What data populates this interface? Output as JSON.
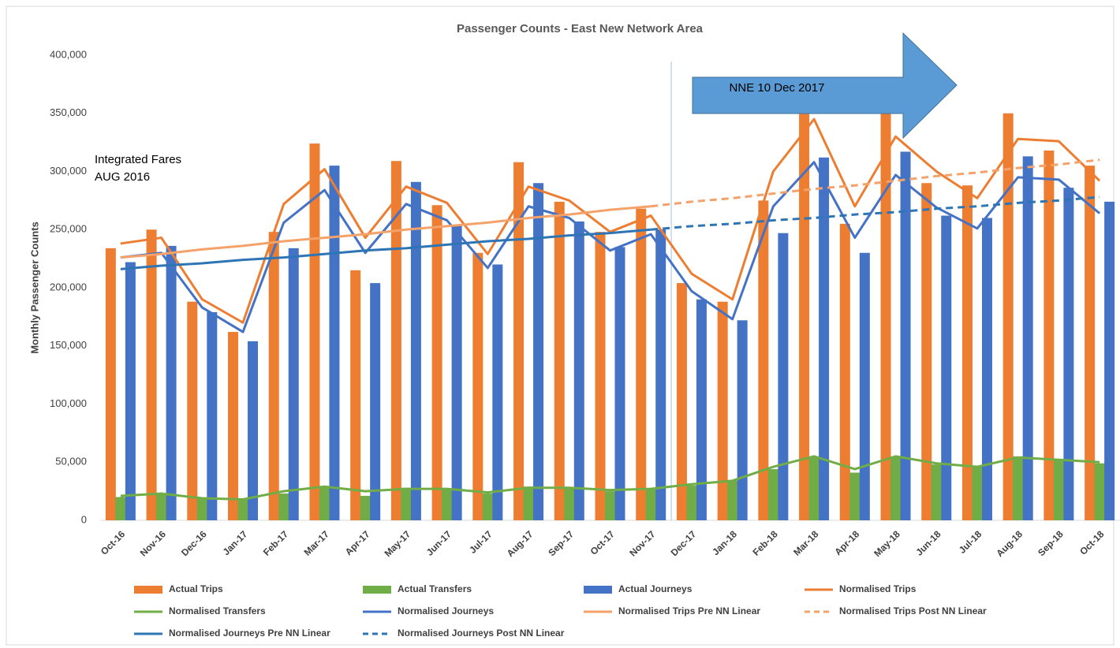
{
  "chart_data": {
    "type": "bar",
    "title": "Passenger Counts - East New Network Area",
    "y_label": "Monthly Passenger Counts",
    "annotations": [
      "Integrated Fares",
      "AUG 2016",
      "NNE 10 Dec 2017"
    ],
    "categories": [
      "Oct-16",
      "Nov-16",
      "Dec-16",
      "Jan-17",
      "Feb-17",
      "Mar-17",
      "Apr-17",
      "May-17",
      "Jun-17",
      "Jul-17",
      "Aug-17",
      "Sep-17",
      "Oct-17",
      "Nov-17",
      "Dec-17",
      "Jan-18",
      "Feb-18",
      "Mar-18",
      "Apr-18",
      "May-18",
      "Jun-18",
      "Jul-18",
      "Aug-18",
      "Sep-18",
      "Oct-18"
    ],
    "ylim": [
      0,
      400000
    ],
    "yticks": [
      0,
      {
        "value": 50000,
        "label": "50,000"
      },
      {
        "value": 100000,
        "label": "100,000"
      },
      {
        "value": 150000,
        "label": "150,000"
      },
      {
        "value": 200000,
        "label": "200,000"
      },
      {
        "value": 250000,
        "label": "250,000"
      },
      {
        "value": 300000,
        "label": "300,000"
      },
      {
        "value": 350000,
        "label": "350,000"
      },
      {
        "value": 400000,
        "label": "400,000"
      }
    ],
    "grid": false,
    "legend": "bottom",
    "series": [
      {
        "name": "Actual Trips",
        "kind": "bar",
        "color": "#ed7d31",
        "values": [
          234000,
          250000,
          188000,
          162000,
          248000,
          324000,
          215000,
          309000,
          271000,
          230000,
          308000,
          274000,
          248000,
          268000,
          204000,
          188000,
          275000,
          350000,
          255000,
          352000,
          290000,
          288000,
          350000,
          318000,
          305000
        ]
      },
      {
        "name": "Actual Transfers",
        "kind": "bar",
        "color": "#70ad47",
        "values": [
          20000,
          23000,
          19000,
          19000,
          23000,
          29000,
          21000,
          28000,
          27000,
          23000,
          29000,
          28000,
          25000,
          27000,
          30000,
          34000,
          44000,
          55000,
          41000,
          55000,
          48000,
          46000,
          55000,
          52000,
          49000
        ]
      },
      {
        "name": "Actual Journeys",
        "kind": "bar",
        "color": "#4472c4",
        "values": [
          222000,
          236000,
          179000,
          154000,
          234000,
          305000,
          204000,
          291000,
          254000,
          220000,
          290000,
          257000,
          235000,
          250000,
          190000,
          172000,
          247000,
          312000,
          230000,
          317000,
          262000,
          260000,
          313000,
          286000,
          274000
        ]
      },
      {
        "name": "Normalised Trips",
        "kind": "line",
        "color": "#ed7d31",
        "values": [
          238000,
          243000,
          190000,
          170000,
          272000,
          302000,
          243000,
          287000,
          273000,
          229000,
          287000,
          275000,
          248000,
          262000,
          212000,
          190000,
          300000,
          345000,
          270000,
          330000,
          300000,
          277000,
          328000,
          326000,
          292000
        ]
      },
      {
        "name": "Normalised Transfers",
        "kind": "line",
        "color": "#70ad47",
        "values": [
          21000,
          23000,
          19000,
          18000,
          25000,
          29000,
          25000,
          27000,
          27000,
          24000,
          28000,
          28000,
          26000,
          27000,
          31000,
          34000,
          46000,
          55000,
          44000,
          55000,
          49000,
          46000,
          54000,
          52000,
          50000
        ]
      },
      {
        "name": "Normalised Journeys",
        "kind": "line",
        "color": "#4472c4",
        "values": [
          226000,
          230000,
          183000,
          162000,
          256000,
          284000,
          230000,
          272000,
          258000,
          217000,
          270000,
          260000,
          232000,
          246000,
          197000,
          173000,
          270000,
          308000,
          243000,
          297000,
          269000,
          251000,
          295000,
          293000,
          264000
        ]
      },
      {
        "name": "Normalised Trips Pre NN Linear",
        "kind": "line",
        "color": "#f4a26a",
        "dash": false,
        "values": [
          226000,
          229000,
          233000,
          236000,
          240000,
          243000,
          246000,
          250000,
          253000,
          256000,
          260000,
          263000,
          267000,
          270000,
          null,
          null,
          null,
          null,
          null,
          null,
          null,
          null,
          null,
          null,
          null
        ]
      },
      {
        "name": "Normalised Trips Post NN Linear",
        "kind": "line",
        "color": "#f4a26a",
        "dash": true,
        "values": [
          null,
          null,
          null,
          null,
          null,
          null,
          null,
          null,
          null,
          null,
          null,
          null,
          null,
          270000,
          274000,
          277000,
          281000,
          285000,
          288000,
          292000,
          296000,
          299000,
          303000,
          306000,
          310000
        ]
      },
      {
        "name": "Normalised Journeys Pre NN Linear",
        "kind": "line",
        "color": "#2e75b6",
        "dash": false,
        "values": [
          216000,
          219000,
          221000,
          224000,
          226000,
          229000,
          232000,
          234000,
          237000,
          240000,
          242000,
          245000,
          247000,
          250000,
          null,
          null,
          null,
          null,
          null,
          null,
          null,
          null,
          null,
          null,
          null
        ]
      },
      {
        "name": "Normalised Journeys Post NN Linear",
        "kind": "line",
        "color": "#2e75b6",
        "dash": true,
        "values": [
          null,
          null,
          null,
          null,
          null,
          null,
          null,
          null,
          null,
          null,
          null,
          null,
          null,
          250000,
          253000,
          255000,
          258000,
          260000,
          263000,
          265000,
          268000,
          270000,
          273000,
          275000,
          278000
        ]
      }
    ]
  }
}
